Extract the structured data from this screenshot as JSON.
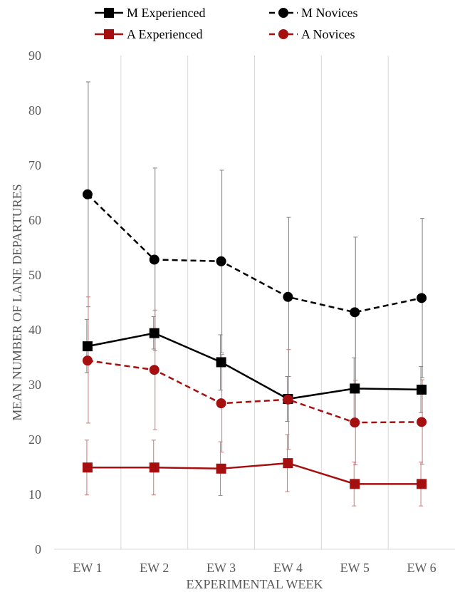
{
  "chart_data": {
    "type": "line",
    "xlabel": "EXPERIMENTAL WEEK",
    "ylabel": "MEAN NUMBER OF LANE DEPARTURES",
    "ylim": [
      0,
      90
    ],
    "yticks": [
      0,
      10,
      20,
      30,
      40,
      50,
      60,
      70,
      80,
      90
    ],
    "categories": [
      "EW 1",
      "EW 2",
      "EW 3",
      "EW 4",
      "EW 5",
      "EW 6"
    ],
    "grid": "vertical",
    "legend": "top",
    "series": [
      {
        "name": "M Experienced",
        "color": "#000000",
        "line": "solid",
        "marker": "square",
        "values": [
          37.0,
          39.4,
          34.1,
          27.4,
          29.3,
          29.1
        ],
        "error_low": [
          32.2,
          36.5,
          29.0,
          23.3,
          23.5,
          24.9
        ],
        "error_high": [
          41.9,
          42.4,
          39.1,
          31.5,
          34.9,
          33.3
        ]
      },
      {
        "name": "M Novices",
        "color": "#000000",
        "line": "dashed",
        "marker": "circle",
        "values": [
          64.7,
          52.8,
          52.5,
          46.0,
          43.2,
          45.8
        ],
        "error_low": [
          44.2,
          36.2,
          35.8,
          31.5,
          29.5,
          31.3
        ],
        "error_high": [
          85.2,
          69.5,
          69.1,
          60.5,
          56.9,
          60.3
        ]
      },
      {
        "name": "A Experienced",
        "color": "#A50F0F",
        "line": "solid",
        "marker": "square",
        "values": [
          14.9,
          14.9,
          14.7,
          15.7,
          11.9,
          11.9
        ],
        "error_low": [
          9.9,
          9.9,
          9.8,
          10.5,
          7.9,
          7.9
        ],
        "error_high": [
          19.9,
          19.9,
          19.6,
          20.9,
          15.9,
          15.9
        ]
      },
      {
        "name": "A Novices",
        "color": "#A50F0F",
        "line": "dashed",
        "marker": "circle",
        "values": [
          34.4,
          32.7,
          26.6,
          27.3,
          23.1,
          23.2
        ],
        "error_low": [
          23.0,
          21.8,
          17.7,
          18.2,
          15.4,
          15.5
        ],
        "error_high": [
          46.0,
          43.6,
          35.5,
          36.4,
          30.8,
          30.9
        ]
      }
    ]
  }
}
